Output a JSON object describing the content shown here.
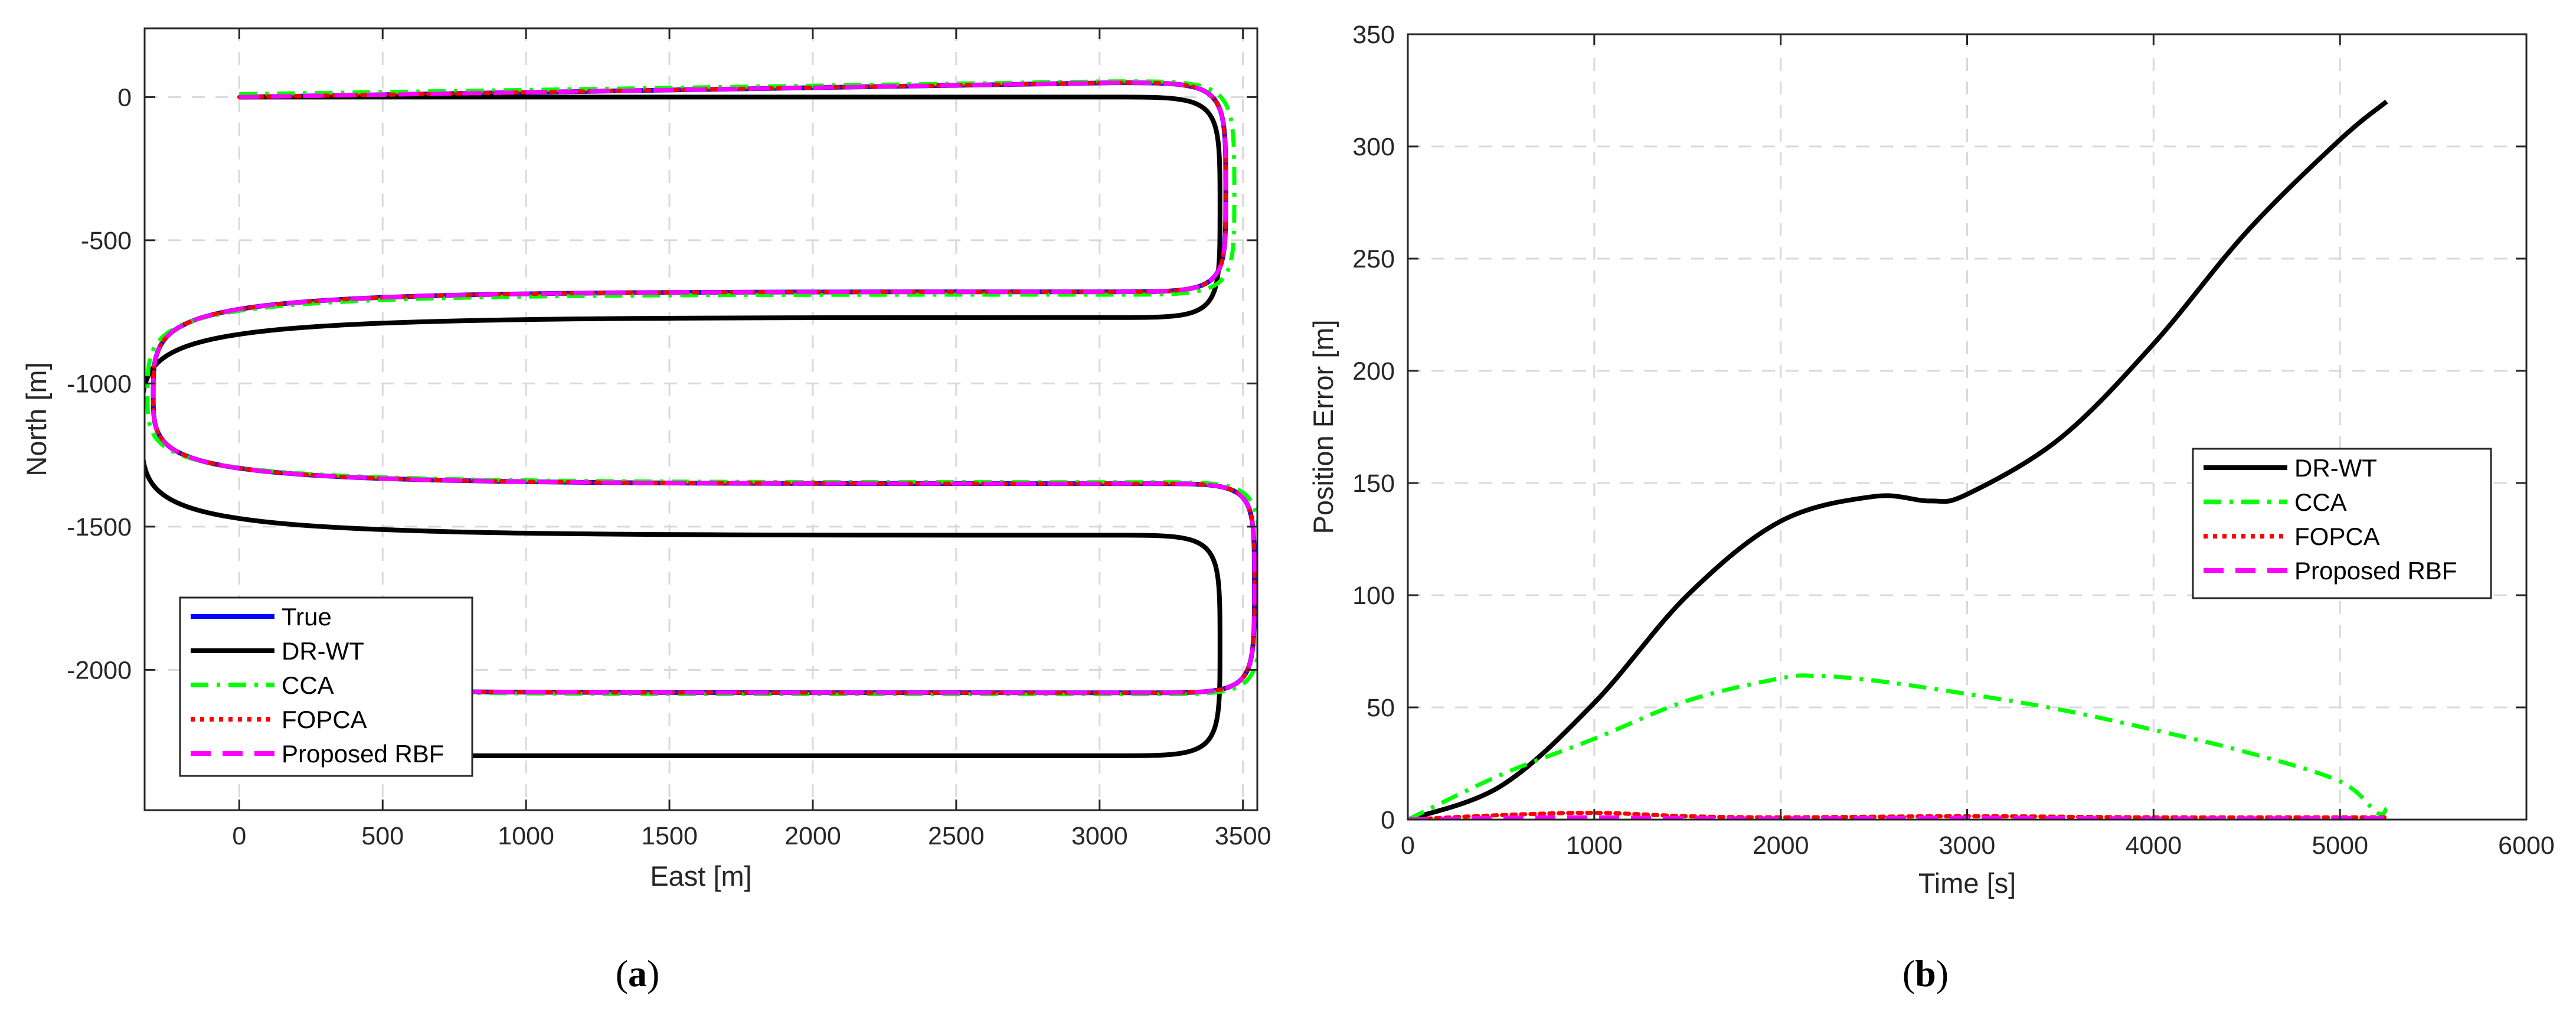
{
  "chart_data": [
    {
      "id": "a",
      "type": "line",
      "caption": "a",
      "xlabel": "East [m]",
      "ylabel": "North [m]",
      "xlim": [
        -330,
        3550
      ],
      "ylim": [
        -2490,
        240
      ],
      "xticks": [
        0,
        500,
        1000,
        1500,
        2000,
        2500,
        3000,
        3500
      ],
      "yticks": [
        0,
        -500,
        -1000,
        -1500,
        -2000
      ],
      "grid": true,
      "legend_position": "bottom-left",
      "series": [
        {
          "name": "True",
          "color": "#0000ff",
          "style": "solid",
          "x": [
            0,
            3050,
            3440,
            3050,
            -300,
            3180,
            3540,
            3180,
            280
          ],
          "y": [
            0,
            50,
            -330,
            -680,
            -1040,
            -1350,
            -1700,
            -2080,
            -2040
          ]
        },
        {
          "name": "DR-WT",
          "color": "#000000",
          "style": "solid",
          "x": [
            0,
            3050,
            3420,
            3050,
            -340,
            3050,
            3420,
            3050,
            0
          ],
          "y": [
            0,
            0,
            -385,
            -770,
            -1150,
            -1530,
            -1915,
            -2300,
            -2300
          ]
        },
        {
          "name": "CCA",
          "color": "#00ff00",
          "style": "dashdot",
          "x": [
            0,
            3050,
            3470,
            3050,
            -320,
            3180,
            3560,
            3180,
            280
          ],
          "y": [
            10,
            55,
            -340,
            -690,
            -1040,
            -1345,
            -1715,
            -2085,
            -2030
          ]
        },
        {
          "name": "FOPCA",
          "color": "#ff0000",
          "style": "dotted",
          "x": [
            0,
            3050,
            3440,
            3050,
            -300,
            3180,
            3540,
            3180,
            280
          ],
          "y": [
            0,
            50,
            -330,
            -680,
            -1040,
            -1350,
            -1700,
            -2080,
            -2040
          ]
        },
        {
          "name": "Proposed RBF",
          "color": "#ff00ff",
          "style": "dashed",
          "x": [
            0,
            3050,
            3440,
            3050,
            -300,
            3180,
            3540,
            3180,
            280
          ],
          "y": [
            0,
            50,
            -330,
            -680,
            -1040,
            -1350,
            -1700,
            -2080,
            -2040
          ]
        }
      ]
    },
    {
      "id": "b",
      "type": "line",
      "caption": "b",
      "xlabel": "Time [s]",
      "ylabel": "Position Error [m]",
      "xlim": [
        0,
        6000
      ],
      "ylim": [
        0,
        350
      ],
      "xticks": [
        0,
        1000,
        2000,
        3000,
        4000,
        5000,
        6000
      ],
      "yticks": [
        0,
        50,
        100,
        150,
        200,
        250,
        300,
        350
      ],
      "grid": true,
      "legend_position": "center-right",
      "series": [
        {
          "name": "DR-WT",
          "color": "#000000",
          "style": "solid",
          "x": [
            0,
            500,
            1000,
            1500,
            2000,
            2500,
            2800,
            3000,
            3500,
            4000,
            4500,
            5000,
            5250
          ],
          "y": [
            0,
            15,
            52,
            100,
            133,
            144,
            142,
            145,
            170,
            212,
            262,
            303,
            320
          ]
        },
        {
          "name": "CCA",
          "color": "#00ff00",
          "style": "dashdot",
          "x": [
            0,
            500,
            1000,
            1500,
            2000,
            2200,
            2500,
            3000,
            3500,
            4000,
            4500,
            5000,
            5200,
            5250
          ],
          "y": [
            0,
            20,
            36,
            53,
            63,
            64,
            62,
            56,
            49,
            40,
            30,
            17,
            3,
            5
          ]
        },
        {
          "name": "FOPCA",
          "color": "#ff0000",
          "style": "dotted",
          "x": [
            0,
            500,
            1000,
            1500,
            2000,
            3000,
            4000,
            5000,
            5250
          ],
          "y": [
            0,
            2,
            3,
            1.5,
            1,
            1.5,
            1,
            1,
            1
          ]
        },
        {
          "name": "Proposed RBF",
          "color": "#ff00ff",
          "style": "dashed",
          "x": [
            0,
            500,
            1000,
            1500,
            2000,
            3000,
            4000,
            5000,
            5250
          ],
          "y": [
            0,
            0.8,
            1,
            0.6,
            0.5,
            0.8,
            0.5,
            0.6,
            0.8
          ]
        }
      ]
    }
  ]
}
